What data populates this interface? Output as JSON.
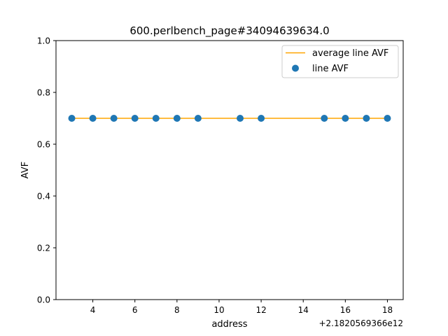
{
  "chart_data": {
    "type": "scatter",
    "title": "600.perlbench_page#34094639634.0",
    "xlabel": "address",
    "ylabel": "AVF",
    "x_offset_label": "+2.1820569366e12",
    "xlim": [
      2.25,
      18.75
    ],
    "ylim": [
      0,
      1
    ],
    "xticks": [
      4,
      6,
      8,
      10,
      12,
      14,
      16,
      18
    ],
    "xtick_labels": [
      "4",
      "6",
      "8",
      "10",
      "12",
      "14",
      "16",
      "18"
    ],
    "yticks": [
      0,
      0.2,
      0.4,
      0.6,
      0.8,
      1.0
    ],
    "ytick_labels": [
      "0.0",
      "0.2",
      "0.4",
      "0.6",
      "0.8",
      "1.0"
    ],
    "legend_position": "top-right",
    "grid": false,
    "series": [
      {
        "name": "average line AVF",
        "kind": "line",
        "color": "#ffa500",
        "x": [
          3,
          18
        ],
        "y": [
          0.7,
          0.7
        ]
      },
      {
        "name": "line AVF",
        "kind": "scatter",
        "color": "#1f77b4",
        "x": [
          3,
          4,
          5,
          6,
          7,
          8,
          9,
          11,
          12,
          15,
          16,
          17,
          18
        ],
        "y": [
          0.7,
          0.7,
          0.7,
          0.7,
          0.7,
          0.7,
          0.7,
          0.7,
          0.7,
          0.7,
          0.7,
          0.7,
          0.7
        ]
      }
    ]
  }
}
